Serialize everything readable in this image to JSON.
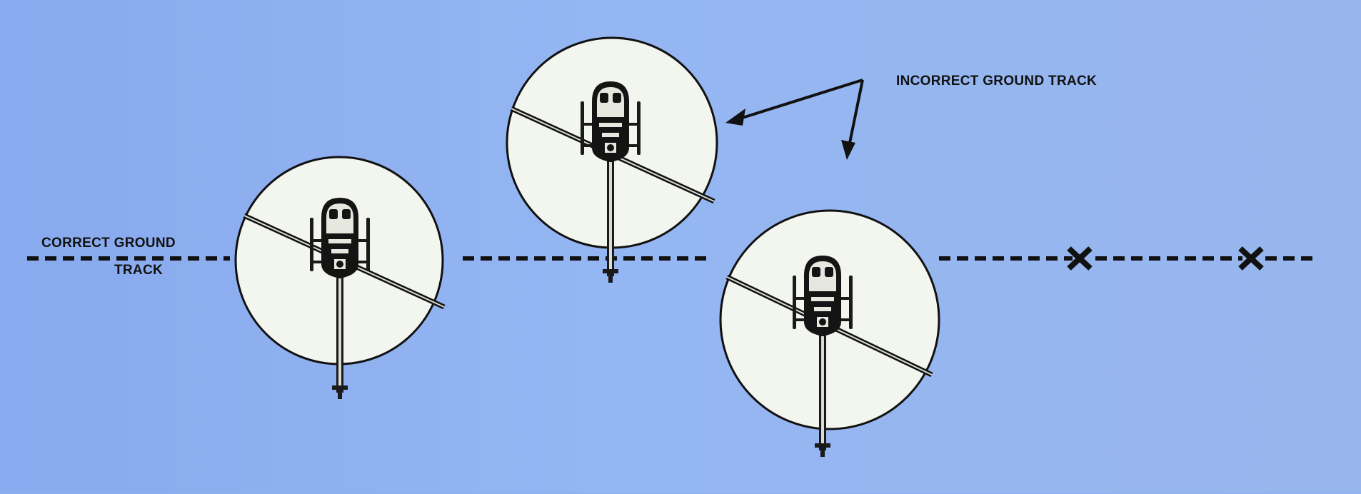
{
  "labels": {
    "correct_ground_track_line1": "CORRECT GROUND",
    "correct_ground_track_line2": "TRACK",
    "incorrect_ground_track": "INCORRECT GROUND TRACK"
  },
  "markers": {
    "x_mark": "X"
  },
  "colors": {
    "background": "#8fb0ef",
    "disc": "#f3f6ef",
    "ink": "#111111"
  },
  "icons": [
    "helicopter-icon",
    "rotor-disc",
    "x-mark",
    "arrow"
  ]
}
